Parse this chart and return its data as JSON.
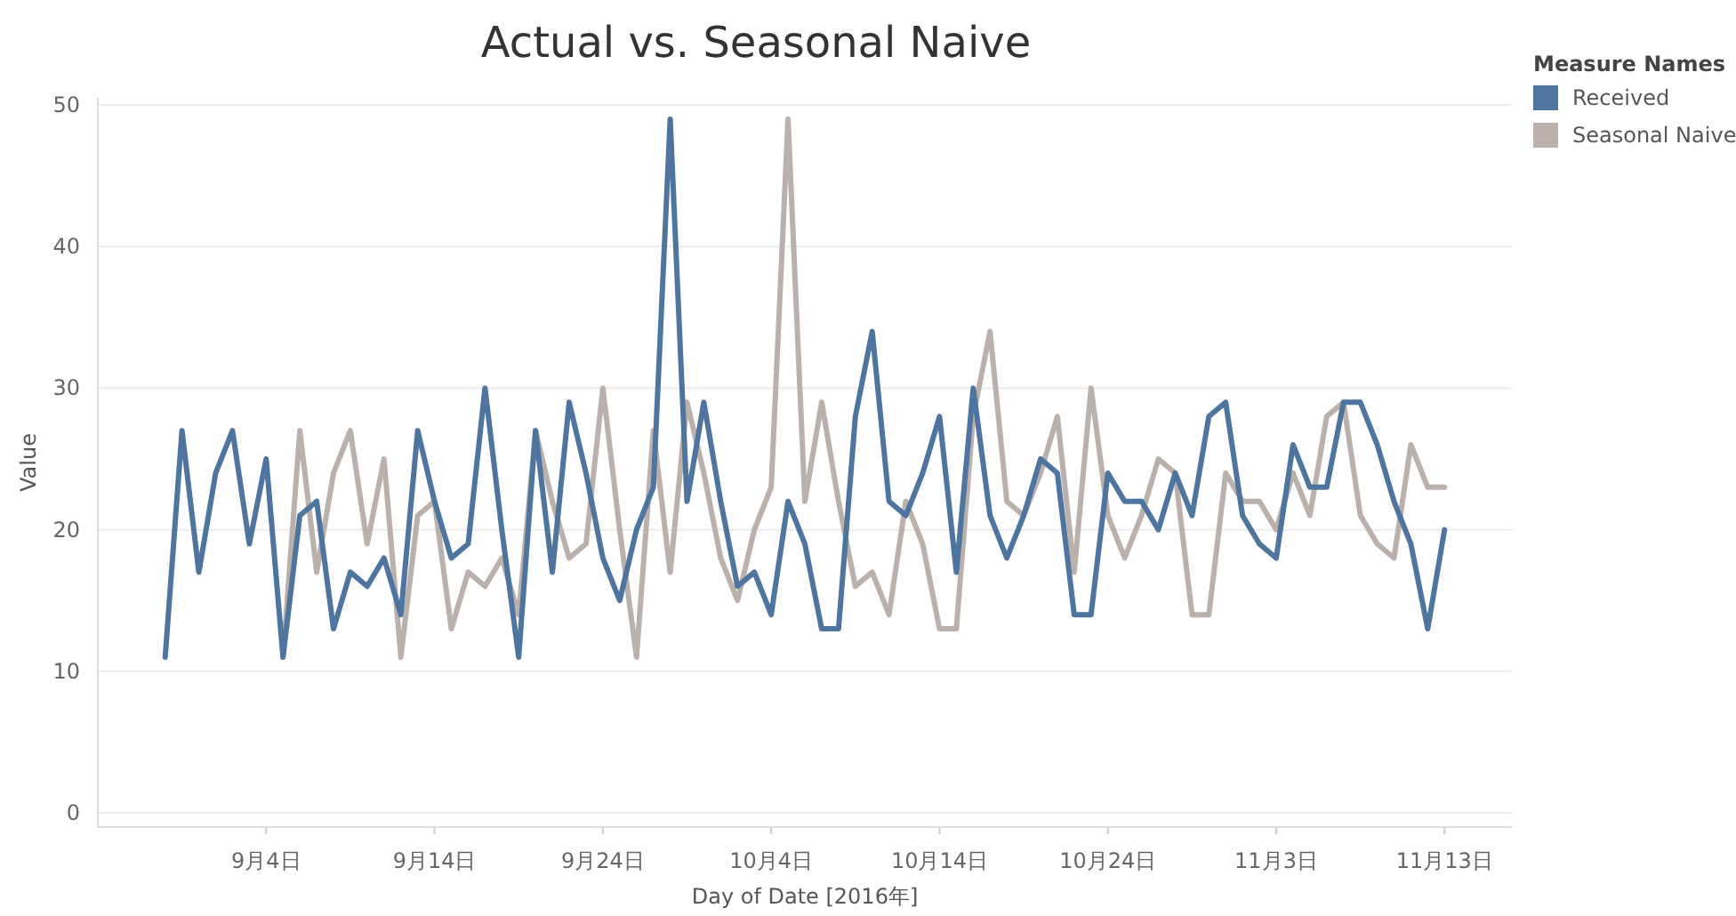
{
  "chart_data": {
    "type": "line",
    "title": "Actual vs. Seasonal Naive",
    "xlabel": "Day of Date [2016年]",
    "ylabel": "Value",
    "legend_title": "Measure Names",
    "legend": "top right",
    "grid": "y",
    "line_style": "solid",
    "marker": "none",
    "xlim": [
      "2016-08-25",
      "2016-11-17"
    ],
    "ylim": [
      -1,
      50.5
    ],
    "xticks": [
      {
        "value": "2016-09-04",
        "label": "9月4日"
      },
      {
        "value": "2016-09-14",
        "label": "9月14日"
      },
      {
        "value": "2016-09-24",
        "label": "9月24日"
      },
      {
        "value": "2016-10-04",
        "label": "10月4日"
      },
      {
        "value": "2016-10-14",
        "label": "10月14日"
      },
      {
        "value": "2016-10-24",
        "label": "10月24日"
      },
      {
        "value": "2016-11-03",
        "label": "11月3日"
      },
      {
        "value": "2016-11-13",
        "label": "11月13日"
      }
    ],
    "yticks": [
      0,
      10,
      20,
      30,
      40,
      50
    ],
    "x": [
      "2016-08-29",
      "2016-08-30",
      "2016-08-31",
      "2016-09-01",
      "2016-09-02",
      "2016-09-03",
      "2016-09-04",
      "2016-09-05",
      "2016-09-06",
      "2016-09-07",
      "2016-09-08",
      "2016-09-09",
      "2016-09-10",
      "2016-09-11",
      "2016-09-12",
      "2016-09-13",
      "2016-09-14",
      "2016-09-15",
      "2016-09-16",
      "2016-09-17",
      "2016-09-18",
      "2016-09-19",
      "2016-09-20",
      "2016-09-21",
      "2016-09-22",
      "2016-09-23",
      "2016-09-24",
      "2016-09-25",
      "2016-09-26",
      "2016-09-27",
      "2016-09-28",
      "2016-09-29",
      "2016-09-30",
      "2016-10-01",
      "2016-10-02",
      "2016-10-03",
      "2016-10-04",
      "2016-10-05",
      "2016-10-06",
      "2016-10-07",
      "2016-10-08",
      "2016-10-09",
      "2016-10-10",
      "2016-10-11",
      "2016-10-12",
      "2016-10-13",
      "2016-10-14",
      "2016-10-15",
      "2016-10-16",
      "2016-10-17",
      "2016-10-18",
      "2016-10-19",
      "2016-10-20",
      "2016-10-21",
      "2016-10-22",
      "2016-10-23",
      "2016-10-24",
      "2016-10-25",
      "2016-10-26",
      "2016-10-27",
      "2016-10-28",
      "2016-10-29",
      "2016-10-30",
      "2016-10-31",
      "2016-11-01",
      "2016-11-02",
      "2016-11-03",
      "2016-11-04",
      "2016-11-05",
      "2016-11-06",
      "2016-11-07",
      "2016-11-08",
      "2016-11-09",
      "2016-11-10",
      "2016-11-11",
      "2016-11-12",
      "2016-11-13"
    ],
    "series": [
      {
        "name": "Seasonal Naive",
        "color": "#bab0ac",
        "values": [
          null,
          null,
          null,
          null,
          null,
          null,
          null,
          11,
          27,
          17,
          24,
          27,
          19,
          25,
          11,
          21,
          22,
          13,
          17,
          16,
          18,
          14,
          27,
          22,
          18,
          19,
          30,
          20,
          11,
          27,
          17,
          29,
          24,
          18,
          15,
          20,
          23,
          49,
          22,
          29,
          22,
          16,
          17,
          14,
          22,
          19,
          13,
          13,
          28,
          34,
          22,
          21,
          24,
          28,
          17,
          30,
          21,
          18,
          21,
          25,
          24,
          14,
          14,
          24,
          22,
          22,
          20,
          24,
          21,
          28,
          29,
          21,
          19,
          18,
          26,
          23,
          23
        ]
      },
      {
        "name": "Received",
        "color": "#4e74a0",
        "values": [
          11,
          27,
          17,
          24,
          27,
          19,
          25,
          11,
          21,
          22,
          13,
          17,
          16,
          18,
          14,
          27,
          22,
          18,
          19,
          30,
          20,
          11,
          27,
          17,
          29,
          24,
          18,
          15,
          20,
          23,
          49,
          22,
          29,
          22,
          16,
          17,
          14,
          22,
          19,
          13,
          13,
          28,
          34,
          22,
          21,
          24,
          28,
          17,
          30,
          21,
          18,
          21,
          25,
          24,
          14,
          14,
          24,
          22,
          22,
          20,
          24,
          21,
          28,
          29,
          21,
          19,
          18,
          26,
          23,
          23,
          29,
          29,
          26,
          22,
          19,
          13,
          20
        ]
      }
    ]
  }
}
